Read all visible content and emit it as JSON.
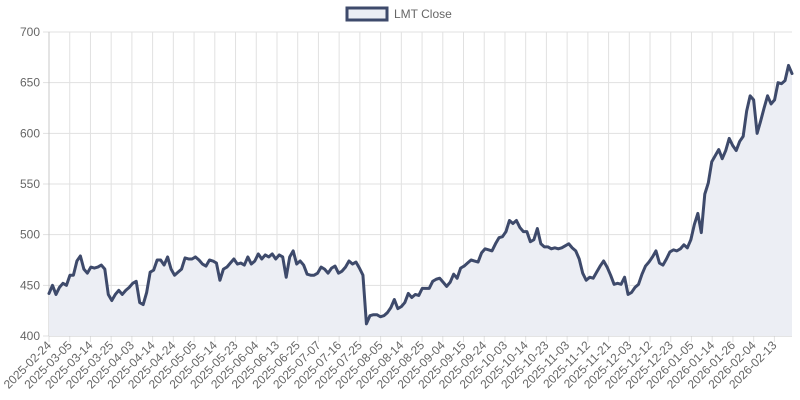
{
  "chart_data": {
    "type": "area",
    "title": "",
    "xlabel": "",
    "ylabel": "",
    "ylim": [
      400,
      700
    ],
    "y_ticks": [
      400,
      450,
      500,
      550,
      600,
      650,
      700
    ],
    "grid": true,
    "legend_position": "top-center",
    "x_tick_labels": [
      "2025-02-24",
      "2025-03-05",
      "2025-03-14",
      "2025-03-25",
      "2025-04-03",
      "2025-04-14",
      "2025-04-24",
      "2025-05-05",
      "2025-05-14",
      "2025-05-23",
      "2025-06-04",
      "2025-06-13",
      "2025-06-25",
      "2025-07-07",
      "2025-07-16",
      "2025-07-25",
      "2025-08-05",
      "2025-08-14",
      "2025-08-25",
      "2025-09-04",
      "2025-09-15",
      "2025-09-24",
      "2025-10-03",
      "2025-10-14",
      "2025-10-23",
      "2025-11-03",
      "2025-11-12",
      "2025-11-21",
      "2025-12-03",
      "2025-12-12",
      "2025-12-23",
      "2026-01-05",
      "2026-01-14",
      "2026-01-26",
      "2026-02-04",
      "2026-02-13"
    ],
    "series": [
      {
        "name": "LMT Close",
        "line_color": "#3e4a6b",
        "fill_color": "#eceef4",
        "values": [
          442,
          450,
          441,
          448,
          452,
          450,
          460,
          460,
          474,
          479,
          466,
          462,
          468,
          467,
          468,
          470,
          466,
          441,
          435,
          441,
          445,
          441,
          445,
          448,
          452,
          454,
          433,
          431,
          443,
          463,
          465,
          475,
          475,
          470,
          478,
          466,
          460,
          463,
          466,
          477,
          476,
          476,
          478,
          475,
          471,
          469,
          475,
          474,
          472,
          455,
          466,
          468,
          472,
          476,
          471,
          472,
          470,
          478,
          471,
          474,
          481,
          476,
          480,
          478,
          481,
          476,
          480,
          478,
          458,
          478,
          484,
          471,
          474,
          470,
          461,
          460,
          460,
          462,
          468,
          466,
          462,
          467,
          469,
          462,
          464,
          468,
          474,
          471,
          473,
          467,
          460,
          412,
          420,
          421,
          421,
          419,
          420,
          423,
          428,
          436,
          427,
          429,
          433,
          442,
          438,
          441,
          440,
          447,
          447,
          447,
          454,
          456,
          457,
          453,
          449,
          453,
          461,
          457,
          467,
          469,
          472,
          475,
          474,
          473,
          482,
          486,
          485,
          484,
          491,
          497,
          498,
          503,
          514,
          511,
          514,
          507,
          503,
          503,
          493,
          495,
          506,
          491,
          488,
          488,
          486,
          487,
          486,
          487,
          489,
          491,
          487,
          484,
          476,
          462,
          455,
          458,
          457,
          463,
          469,
          474,
          468,
          460,
          451,
          452,
          451,
          458,
          441,
          443,
          448,
          451,
          461,
          469,
          473,
          478,
          484,
          472,
          470,
          476,
          483,
          485,
          484,
          486,
          490,
          487,
          495,
          510,
          521,
          502,
          540,
          551,
          572,
          578,
          584,
          575,
          583,
          595,
          588,
          583,
          592,
          597,
          622,
          637,
          633,
          600,
          612,
          625,
          637,
          629,
          633,
          650,
          649,
          652,
          667,
          659
        ]
      }
    ]
  }
}
